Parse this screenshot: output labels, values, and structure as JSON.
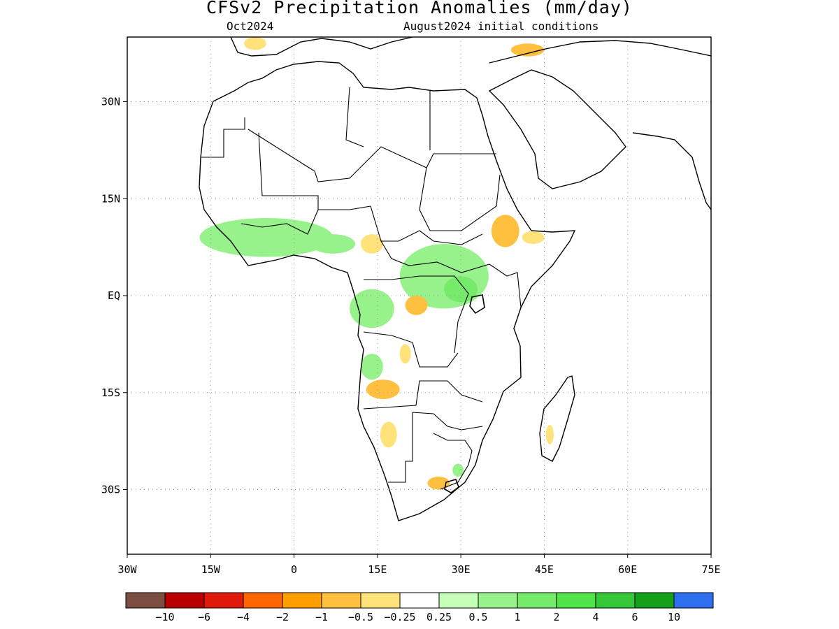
{
  "title": "CFSv2 Precipitation Anomalies (mm/day)",
  "subtitle_left": "Oct2024",
  "subtitle_right": "August2024 initial conditions",
  "map": {
    "lon_range": [
      -30,
      75
    ],
    "lat_range": [
      -40,
      40
    ],
    "lon_ticks": [
      {
        "lon": -30,
        "label": "30W"
      },
      {
        "lon": -15,
        "label": "15W"
      },
      {
        "lon": 0,
        "label": "0"
      },
      {
        "lon": 15,
        "label": "15E"
      },
      {
        "lon": 30,
        "label": "30E"
      },
      {
        "lon": 45,
        "label": "45E"
      },
      {
        "lon": 60,
        "label": "60E"
      },
      {
        "lon": 75,
        "label": "75E"
      }
    ],
    "lat_ticks": [
      {
        "lat": 30,
        "label": "30N"
      },
      {
        "lat": 15,
        "label": "15N"
      },
      {
        "lat": 0,
        "label": "EQ"
      },
      {
        "lat": -15,
        "label": "15S"
      },
      {
        "lat": -30,
        "label": "30S"
      }
    ]
  },
  "colorbar": {
    "colors": [
      "#7a4f42",
      "#b90000",
      "#e01a0a",
      "#ff6600",
      "#ff9e00",
      "#ffbf3f",
      "#ffe27a",
      "#ffffff",
      "#c6ffb8",
      "#98f28c",
      "#76ea6a",
      "#52e24a",
      "#37c83a",
      "#14a01a",
      "#2f70f0"
    ],
    "labels": [
      "−10",
      "−6",
      "−4",
      "−2",
      "−1",
      "−0.5",
      "−0.25",
      "0.25",
      "0.5",
      "1",
      "2",
      "4",
      "6",
      "10"
    ]
  },
  "anomalies": [
    {
      "name": "west-africa-wet-band",
      "category": "+0.5",
      "lon": -5,
      "lat": 9,
      "rx": 12,
      "ry": 3
    },
    {
      "name": "central-africa-wet",
      "category": "+0.5",
      "lon": 27,
      "lat": 3,
      "rx": 8,
      "ry": 5
    },
    {
      "name": "great-lakes-wet",
      "category": "+1",
      "lon": 30,
      "lat": 1,
      "rx": 3,
      "ry": 2
    },
    {
      "name": "congo-basin-wet",
      "category": "+0.5",
      "lon": 14,
      "lat": -2,
      "rx": 4,
      "ry": 3
    },
    {
      "name": "angola-wet",
      "category": "+0.5",
      "lon": 14,
      "lat": -11,
      "rx": 2,
      "ry": 2
    },
    {
      "name": "nigeria-wet",
      "category": "+0.5",
      "lon": 7,
      "lat": 8,
      "rx": 4,
      "ry": 1.5
    },
    {
      "name": "ethiopia-dry",
      "category": "-0.5",
      "lon": 38,
      "lat": 10,
      "rx": 2.5,
      "ry": 2.5
    },
    {
      "name": "somalia-dry",
      "category": "-0.25",
      "lon": 43,
      "lat": 9,
      "rx": 2,
      "ry": 1
    },
    {
      "name": "drc-dry",
      "category": "-0.5",
      "lon": 22,
      "lat": -1.5,
      "rx": 2,
      "ry": 1.5
    },
    {
      "name": "angola-dry",
      "category": "-0.5",
      "lon": 16,
      "lat": -14.5,
      "rx": 3,
      "ry": 1.5
    },
    {
      "name": "zambia-dry",
      "category": "-0.25",
      "lon": 20,
      "lat": -9,
      "rx": 1,
      "ry": 1.5
    },
    {
      "name": "cameroon-dry",
      "category": "-0.25",
      "lon": 14,
      "lat": 8,
      "rx": 2,
      "ry": 1.5
    },
    {
      "name": "namibia-dry",
      "category": "-0.25",
      "lon": 17,
      "lat": -21.5,
      "rx": 1.5,
      "ry": 2
    },
    {
      "name": "south-africa-dry",
      "category": "-0.5",
      "lon": 26,
      "lat": -29,
      "rx": 2,
      "ry": 1
    },
    {
      "name": "madagascar-dry",
      "category": "-0.25",
      "lon": 46,
      "lat": -21.5,
      "rx": 0.7,
      "ry": 1.5
    },
    {
      "name": "lesotho-wet",
      "category": "+0.5",
      "lon": 29.5,
      "lat": -27,
      "rx": 1,
      "ry": 1
    },
    {
      "name": "morocco-dry",
      "category": "-0.25",
      "lon": -7,
      "lat": 39,
      "rx": 2,
      "ry": 1
    },
    {
      "name": "mediterranean-dry",
      "category": "-0.5",
      "lon": 42,
      "lat": 38,
      "rx": 3,
      "ry": 1
    }
  ]
}
